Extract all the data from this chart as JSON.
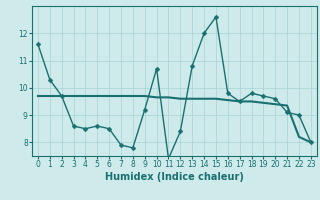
{
  "xlabel": "Humidex (Indice chaleur)",
  "background_color": "#ceeaea",
  "grid_color": "#a8d4d4",
  "line_color": "#1a7070",
  "x_data": [
    0,
    1,
    2,
    3,
    4,
    5,
    6,
    7,
    8,
    9,
    10,
    11,
    12,
    13,
    14,
    15,
    16,
    17,
    18,
    19,
    20,
    21,
    22,
    23
  ],
  "y_line1": [
    11.6,
    10.3,
    9.7,
    8.6,
    8.5,
    8.6,
    8.5,
    7.9,
    7.8,
    9.2,
    10.7,
    7.4,
    8.4,
    10.8,
    12.0,
    12.6,
    9.8,
    9.5,
    9.8,
    9.7,
    9.6,
    9.1,
    9.0,
    8.0
  ],
  "y_line2": [
    9.7,
    9.7,
    9.7,
    9.7,
    9.7,
    9.7,
    9.7,
    9.7,
    9.7,
    9.7,
    9.65,
    9.65,
    9.6,
    9.6,
    9.6,
    9.6,
    9.55,
    9.5,
    9.5,
    9.45,
    9.4,
    9.35,
    8.2,
    8.0
  ],
  "ylim": [
    7.5,
    13.0
  ],
  "xlim": [
    -0.5,
    23.5
  ],
  "yticks": [
    8,
    9,
    10,
    11,
    12
  ],
  "xticks": [
    0,
    1,
    2,
    3,
    4,
    5,
    6,
    7,
    8,
    9,
    10,
    11,
    12,
    13,
    14,
    15,
    16,
    17,
    18,
    19,
    20,
    21,
    22,
    23
  ],
  "tick_fontsize": 5.5,
  "label_fontsize": 7,
  "linewidth1": 1.0,
  "linewidth2": 1.5,
  "markersize": 2.5
}
